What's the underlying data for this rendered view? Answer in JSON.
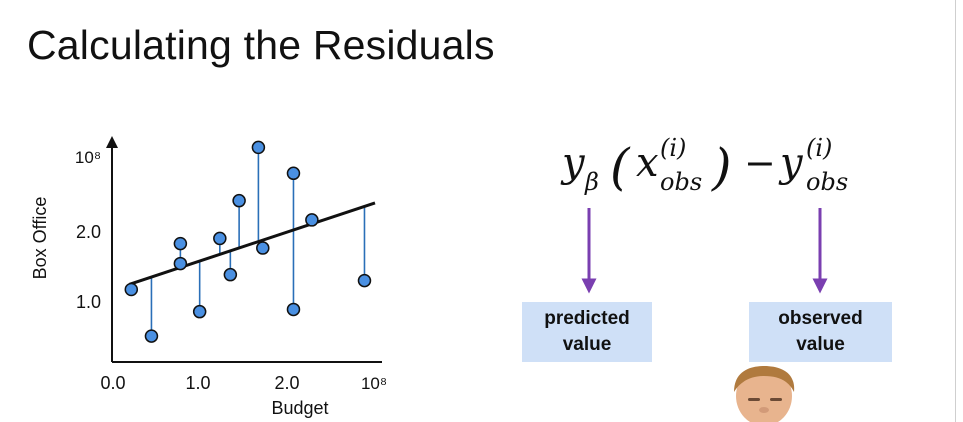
{
  "slide": {
    "title": "Calculating the Residuals"
  },
  "chart_data": {
    "type": "scatter",
    "xlabel": "Budget",
    "ylabel": "Box Office",
    "x_ticks": [
      "0.0",
      "1.0",
      "2.0",
      "10⁸"
    ],
    "y_ticks": [
      "1.0",
      "2.0",
      "10⁸"
    ],
    "xlim": [
      0,
      3
    ],
    "ylim": [
      0,
      3
    ],
    "regression_line": {
      "x0": 0.2,
      "y0": 1.05,
      "x1": 3.0,
      "y1": 2.15
    },
    "points": [
      {
        "x": 0.22,
        "y": 0.98
      },
      {
        "x": 0.45,
        "y": 0.35
      },
      {
        "x": 0.78,
        "y": 1.6
      },
      {
        "x": 0.78,
        "y": 1.33
      },
      {
        "x": 1.0,
        "y": 0.68
      },
      {
        "x": 1.23,
        "y": 1.67
      },
      {
        "x": 1.35,
        "y": 1.18
      },
      {
        "x": 1.45,
        "y": 2.18
      },
      {
        "x": 1.67,
        "y": 2.9
      },
      {
        "x": 1.72,
        "y": 1.54
      },
      {
        "x": 2.07,
        "y": 2.55
      },
      {
        "x": 2.07,
        "y": 0.71
      },
      {
        "x": 2.28,
        "y": 1.92
      },
      {
        "x": 2.88,
        "y": 1.1
      }
    ]
  },
  "formula": {
    "y": "y",
    "beta": "β",
    "x": "x",
    "sup_i": "(i)",
    "sub_obs": "obs",
    "minus": "−",
    "lparen": "(",
    "rparen": ")"
  },
  "labels": {
    "predicted_line1": "predicted",
    "predicted_line2": "value",
    "observed_line1": "observed",
    "observed_line2": "value"
  },
  "colors": {
    "point_fill": "#4a90e2",
    "residual_line": "#2a6fb8",
    "arrow": "#7a3fb0",
    "label_box": "#cfe0f7"
  }
}
